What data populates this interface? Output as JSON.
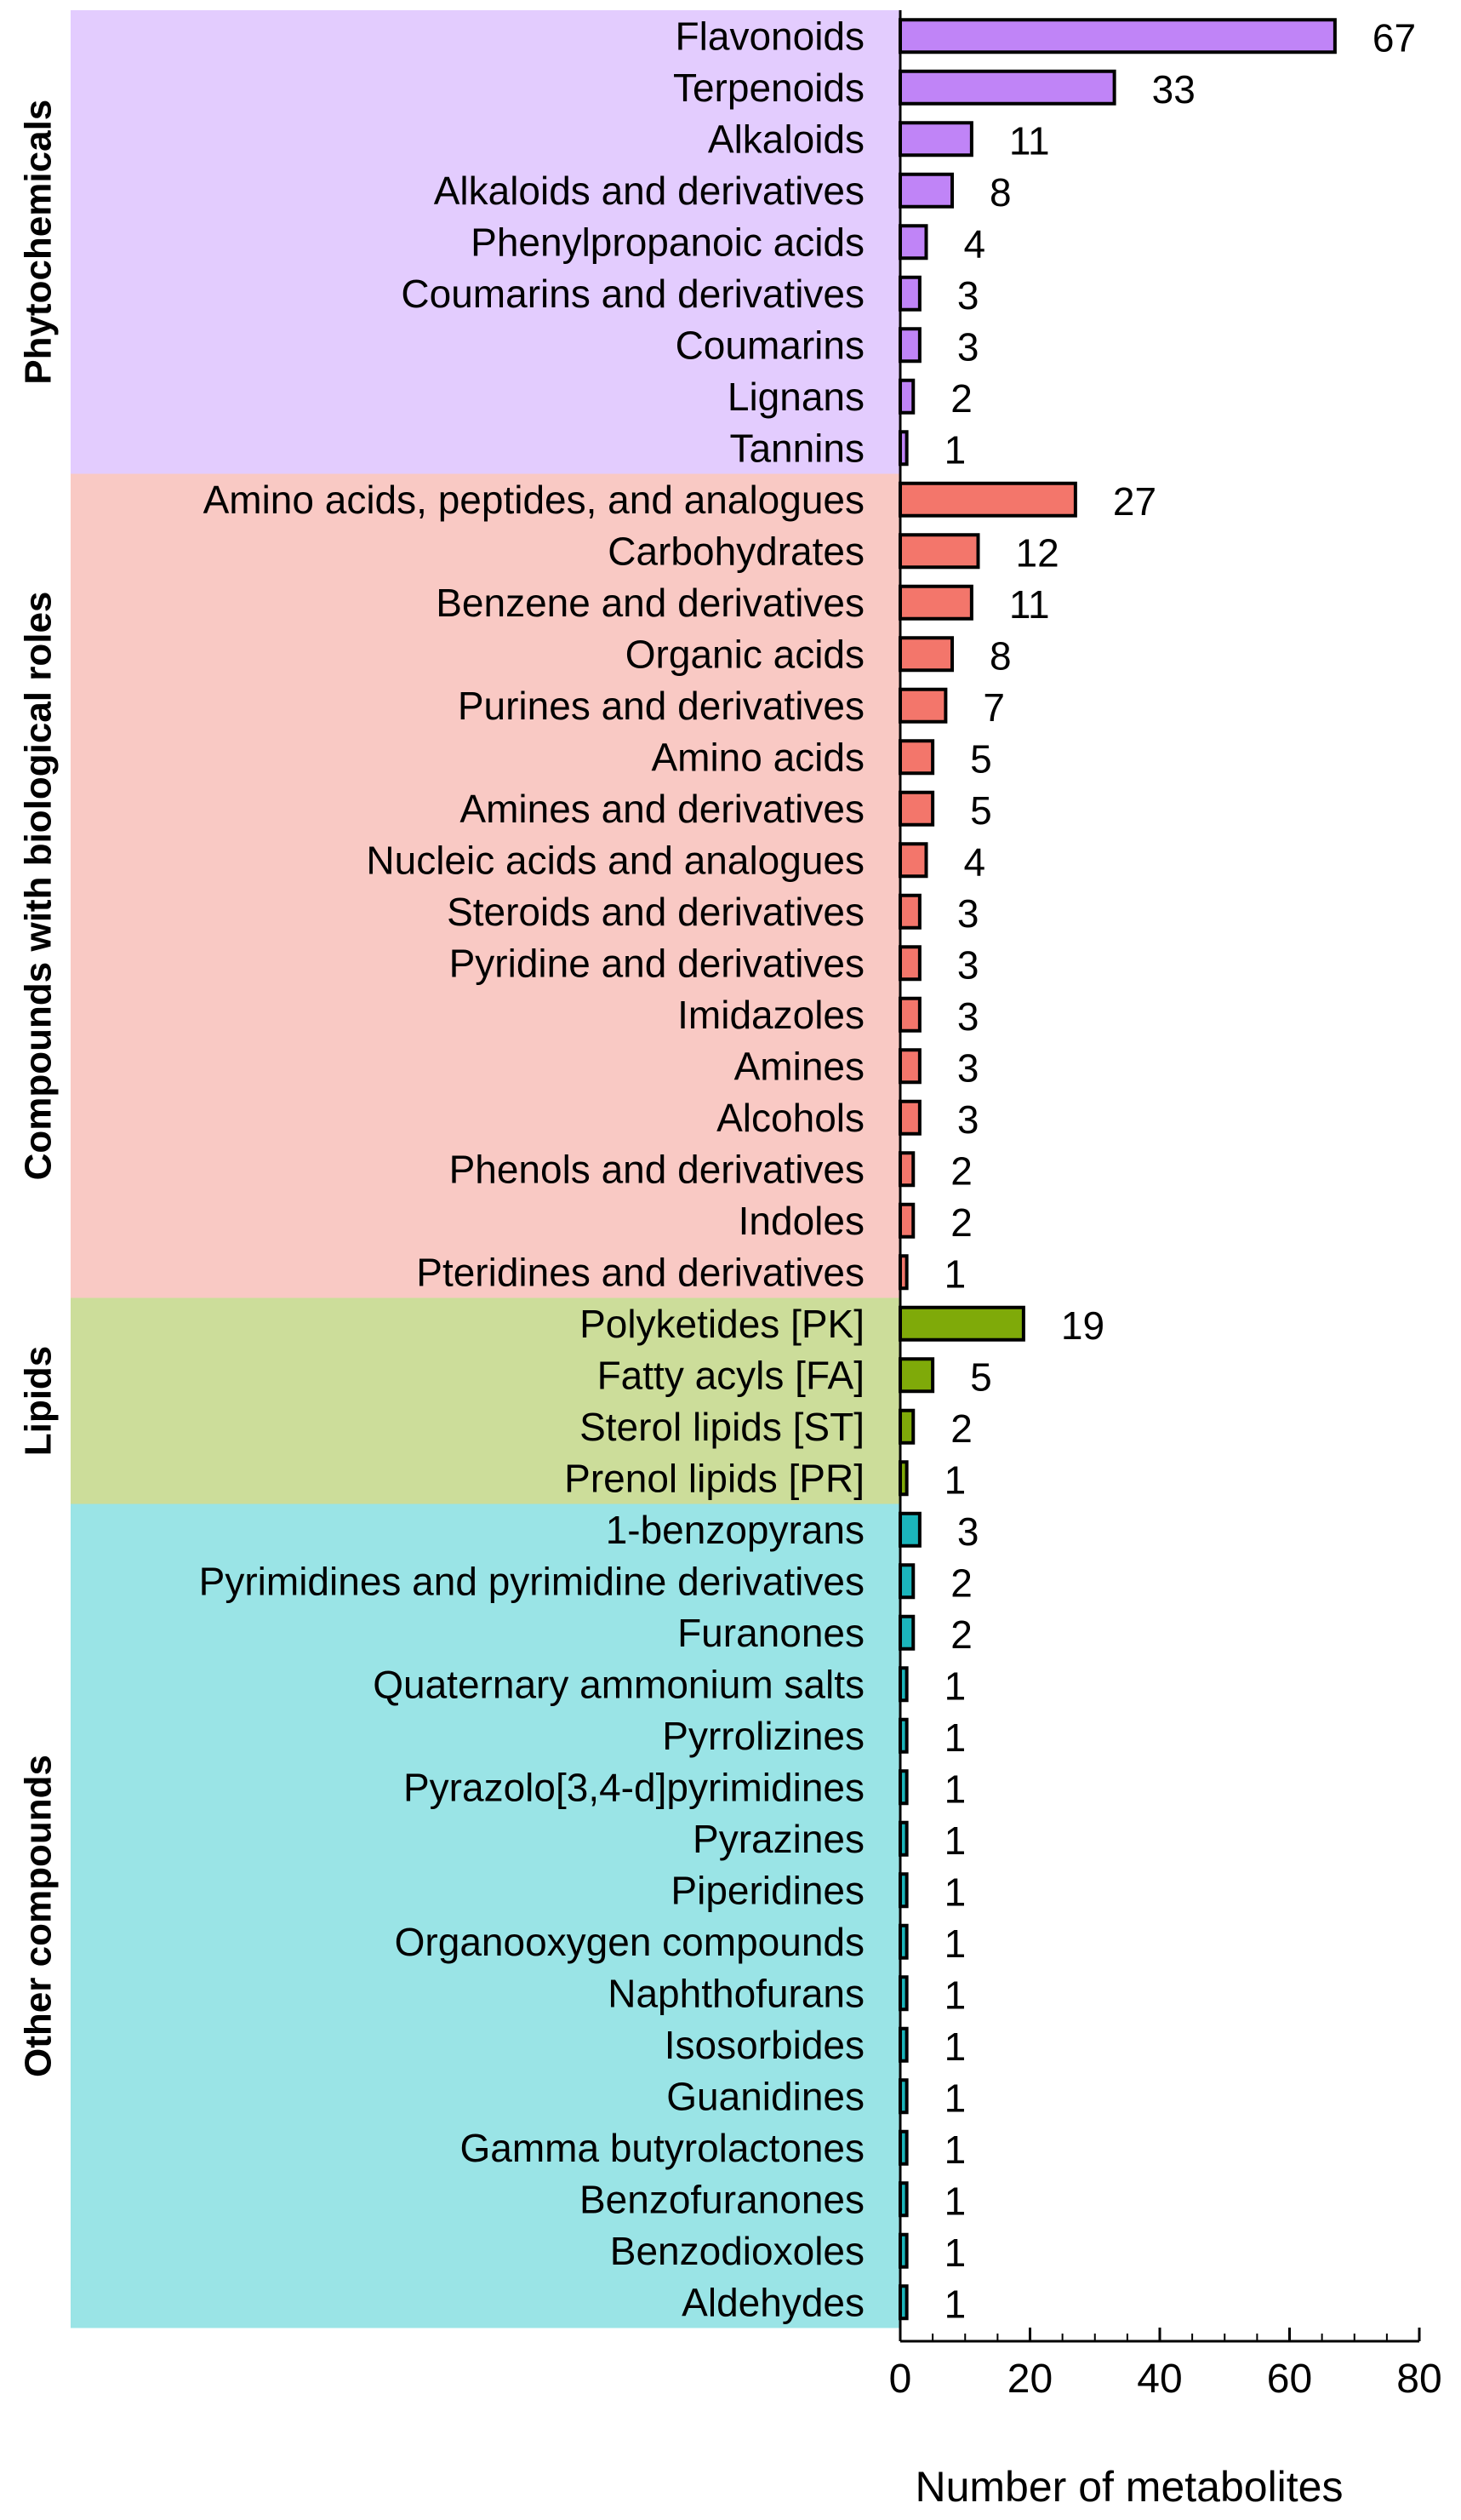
{
  "chart_data": {
    "type": "bar",
    "orientation": "horizontal",
    "title": "",
    "xlabel": "Number of metabolites",
    "ylabel": "",
    "xlim": [
      0,
      80
    ],
    "xticks": [
      0,
      20,
      40,
      60,
      80
    ],
    "grid": false,
    "groups": [
      {
        "name": "Phytochemicals",
        "bg_color": "#E3CCFE",
        "bar_color": "#C084F7",
        "items": [
          {
            "label": "Flavonoids",
            "value": 67
          },
          {
            "label": "Terpenoids",
            "value": 33
          },
          {
            "label": "Alkaloids",
            "value": 11
          },
          {
            "label": "Alkaloids and derivatives",
            "value": 8
          },
          {
            "label": "Phenylpropanoic acids",
            "value": 4
          },
          {
            "label": "Coumarins and derivatives",
            "value": 3
          },
          {
            "label": "Coumarins",
            "value": 3
          },
          {
            "label": "Lignans",
            "value": 2
          },
          {
            "label": "Tannins",
            "value": 1
          }
        ]
      },
      {
        "name": "Compounds with biological roles",
        "bg_color": "#F9C9C4",
        "bar_color": "#F3766B",
        "items": [
          {
            "label": "Amino acids, peptides, and analogues",
            "value": 27
          },
          {
            "label": "Carbohydrates",
            "value": 12
          },
          {
            "label": "Benzene and derivatives",
            "value": 11
          },
          {
            "label": "Organic acids",
            "value": 8
          },
          {
            "label": "Purines and derivatives",
            "value": 7
          },
          {
            "label": "Amino acids",
            "value": 5
          },
          {
            "label": "Amines and derivatives",
            "value": 5
          },
          {
            "label": "Nucleic acids and analogues",
            "value": 4
          },
          {
            "label": "Steroids and derivatives",
            "value": 3
          },
          {
            "label": "Pyridine and derivatives",
            "value": 3
          },
          {
            "label": "Imidazoles",
            "value": 3
          },
          {
            "label": "Amines",
            "value": 3
          },
          {
            "label": "Alcohols",
            "value": 3
          },
          {
            "label": "Phenols and derivatives",
            "value": 2
          },
          {
            "label": "Indoles",
            "value": 2
          },
          {
            "label": "Pteridines and derivatives",
            "value": 1
          }
        ]
      },
      {
        "name": "Lipids",
        "bg_color": "#CCDD9A",
        "bar_color": "#7FAA09",
        "items": [
          {
            "label": "Polyketides [PK]",
            "value": 19
          },
          {
            "label": "Fatty acyls [FA]",
            "value": 5
          },
          {
            "label": "Sterol lipids [ST]",
            "value": 2
          },
          {
            "label": "Prenol lipids [PR]",
            "value": 1
          }
        ]
      },
      {
        "name": "Other compounds",
        "bg_color": "#9AE4E6",
        "bar_color": "#1BB5BB",
        "items": [
          {
            "label": "1-benzopyrans",
            "value": 3
          },
          {
            "label": "Pyrimidines and pyrimidine derivatives",
            "value": 2
          },
          {
            "label": "Furanones",
            "value": 2
          },
          {
            "label": "Quaternary ammonium salts",
            "value": 1
          },
          {
            "label": "Pyrrolizines",
            "value": 1
          },
          {
            "label": "Pyrazolo[3,4-d]pyrimidines",
            "value": 1
          },
          {
            "label": "Pyrazines",
            "value": 1
          },
          {
            "label": "Piperidines",
            "value": 1
          },
          {
            "label": "Organooxygen compounds",
            "value": 1
          },
          {
            "label": "Naphthofurans",
            "value": 1
          },
          {
            "label": "Isosorbides",
            "value": 1
          },
          {
            "label": "Guanidines",
            "value": 1
          },
          {
            "label": "Gamma butyrolactones",
            "value": 1
          },
          {
            "label": "Benzofuranones",
            "value": 1
          },
          {
            "label": "Benzodioxoles",
            "value": 1
          },
          {
            "label": "Aldehydes",
            "value": 1
          }
        ]
      }
    ]
  }
}
